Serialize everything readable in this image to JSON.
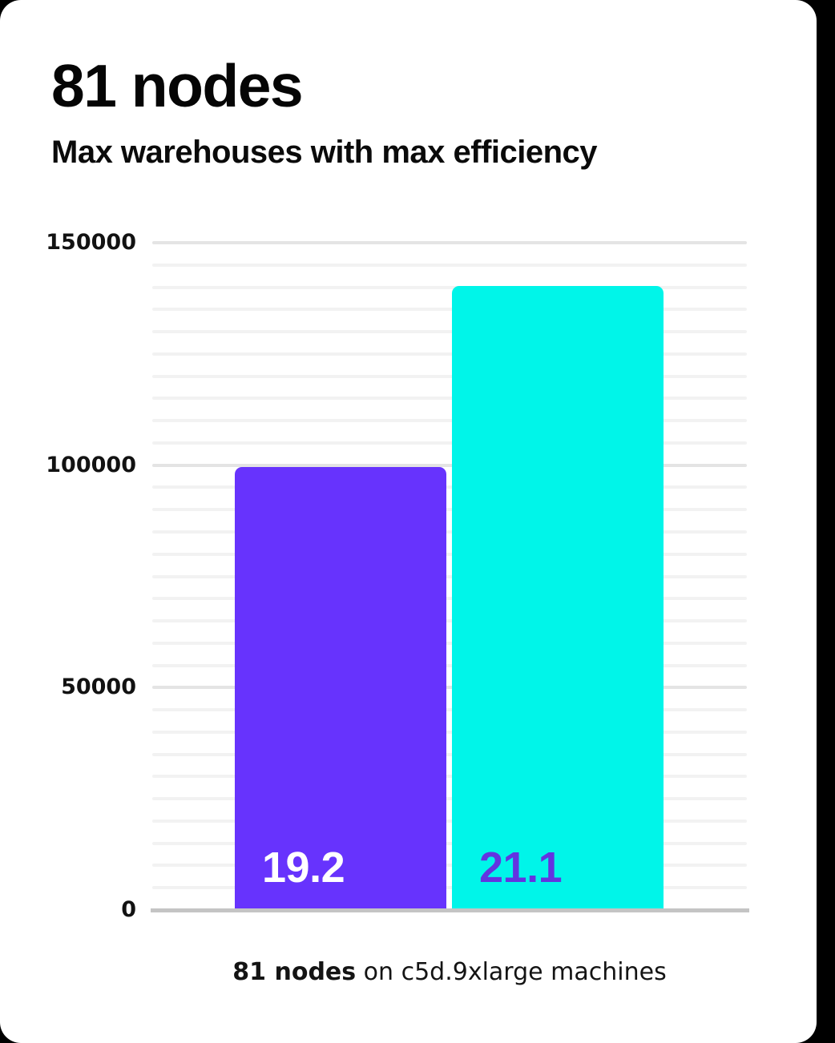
{
  "header": {
    "title": "81 nodes",
    "subtitle": "Max warehouses with max efficiency"
  },
  "caption": {
    "bold": "81 nodes",
    "rest": " on c5d.9xlarge machines"
  },
  "colors": {
    "background": "#000000",
    "card": "#ffffff",
    "purple_bar": "#6733fd",
    "cyan_bar": "#00f5e9",
    "purple_label_on_cyan": "#6334e0",
    "white_label_on_purple": "#ffffff",
    "gridline_minor": "#f2f2f2",
    "gridline_major": "#e4e4e4",
    "baseline": "#c4c4c4",
    "text": "#0a0a0a"
  },
  "chart_data": {
    "type": "bar",
    "title": "81 nodes",
    "subtitle": "Max warehouses with max efficiency",
    "categories": [
      "19.2",
      "21.1"
    ],
    "values": [
      99500,
      140200
    ],
    "values_note": "estimated from gridlines; bars not numerically labeled on axis",
    "bar_labels": [
      "19.2",
      "21.1"
    ],
    "bar_colors": [
      "#6733fd",
      "#00f5e9"
    ],
    "bar_label_colors": [
      "#ffffff",
      "#6334e0"
    ],
    "xlabel": "",
    "ylabel": "",
    "ylim": [
      0,
      150000
    ],
    "yticks": [
      0,
      50000,
      100000,
      150000
    ],
    "ytick_labels": [
      "0",
      "50000",
      "100000",
      "150000"
    ],
    "minor_grid_step": 5000,
    "grid": true,
    "legend": false,
    "caption": "81 nodes on c5d.9xlarge machines"
  }
}
